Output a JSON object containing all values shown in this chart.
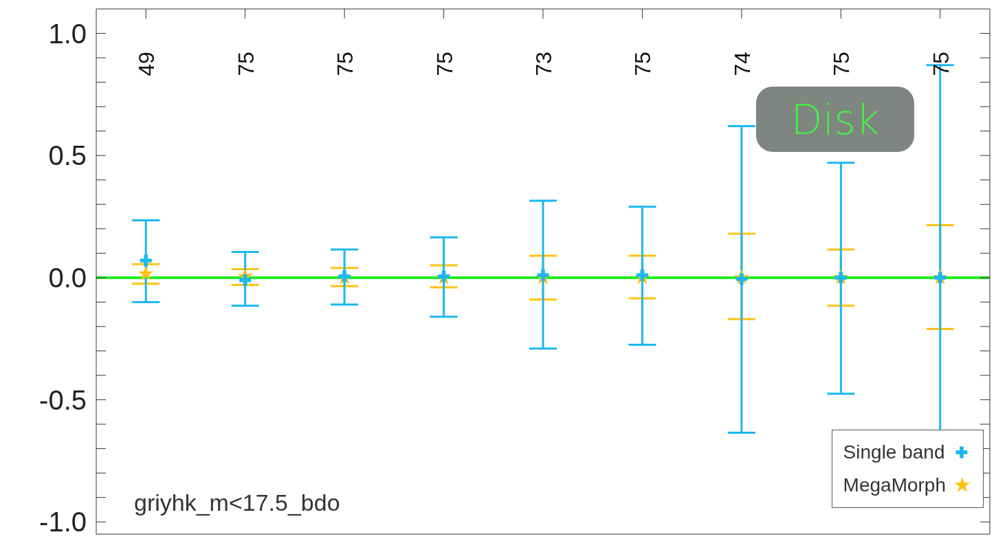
{
  "chart_data": {
    "type": "scatter",
    "categories": [
      null,
      null,
      null,
      null,
      null,
      null,
      null,
      null,
      null
    ],
    "series": [
      {
        "name": "Single band",
        "color": "#1ab8f0",
        "marker": "cross",
        "values": [
          0.07,
          -0.01,
          0.005,
          0.005,
          0.01,
          0.01,
          -0.005,
          0,
          0
        ],
        "errors": [
          [
            -0.1,
            0.235
          ],
          [
            -0.115,
            0.105
          ],
          [
            -0.11,
            0.115
          ],
          [
            -0.16,
            0.165
          ],
          [
            -0.29,
            0.315
          ],
          [
            -0.275,
            0.29
          ],
          [
            -0.635,
            0.62
          ],
          [
            -0.475,
            0.47
          ],
          [
            -0.87,
            0.87
          ]
        ]
      },
      {
        "name": "MegaMorph",
        "color": "#ffc20e",
        "marker": "star",
        "values": [
          0.015,
          0.005,
          0,
          0,
          0,
          0,
          0,
          0,
          0
        ],
        "errors": [
          [
            -0.025,
            0.055
          ],
          [
            -0.03,
            0.035
          ],
          [
            -0.035,
            0.04
          ],
          [
            -0.04,
            0.05
          ],
          [
            -0.09,
            0.09
          ],
          [
            -0.085,
            0.09
          ],
          [
            -0.17,
            0.18
          ],
          [
            -0.115,
            0.115
          ],
          [
            -0.21,
            0.215
          ]
        ]
      }
    ],
    "ylim": [
      -1.05,
      1.1
    ],
    "yticks": [
      {
        "value": -1,
        "label": "-1.0"
      },
      {
        "value": -0.9,
        "label": null
      },
      {
        "value": -0.8,
        "label": null
      },
      {
        "value": -0.7,
        "label": null
      },
      {
        "value": -0.6,
        "label": null
      },
      -0.5,
      {
        "value": -0.4,
        "label": null
      },
      {
        "value": -0.3,
        "label": null
      },
      {
        "value": -0.2,
        "label": null
      },
      {
        "value": -0.1,
        "label": null
      },
      {
        "value": 0,
        "label": "0.0"
      },
      {
        "value": 0.1,
        "label": null
      },
      {
        "value": 0.2,
        "label": null
      },
      {
        "value": 0.3,
        "label": null
      },
      {
        "value": 0.4,
        "label": null
      },
      0.5,
      {
        "value": 0.6,
        "label": null
      },
      {
        "value": 0.7,
        "label": null
      },
      {
        "value": 0.8,
        "label": null
      },
      {
        "value": 0.9,
        "label": null
      },
      {
        "value": 1,
        "label": "1.0"
      }
    ],
    "tick_labels": "y",
    "ref_lines": [
      {
        "axis": "y",
        "value": 0,
        "color": "#22ee22"
      }
    ],
    "legend": "bottom right",
    "annotations": [
      "49",
      "75",
      "75",
      "75",
      "73",
      "75",
      "74",
      "75",
      "75",
      "griyhk_m<17.5_bdo",
      "Disk"
    ]
  }
}
